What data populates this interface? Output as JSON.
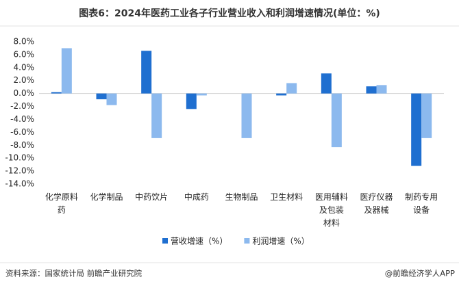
{
  "chart_data": {
    "type": "bar",
    "title": "图表6：2024年医药工业各子行业营业收入和利润增速情况(单位：%)",
    "source": "资料来源：国家统计局 前瞻产业研究院",
    "credit": "@前瞻经济学人APP",
    "categories": [
      "化学原料药",
      "化学制品",
      "中药饮片",
      "中成药",
      "生物制品",
      "卫生材料",
      "医用辅料及包装材料",
      "医疗仪器及器械",
      "制药专用设备"
    ],
    "series": [
      {
        "name": "营收增速（%）",
        "color": "#1f6fd0",
        "values": [
          0.2,
          -0.9,
          6.6,
          -2.4,
          0,
          -0.3,
          3.1,
          1.1,
          -11.2
        ]
      },
      {
        "name": "利润增速（%）",
        "color": "#8cb9ee",
        "values": [
          7.0,
          -1.8,
          -6.9,
          -0.3,
          -6.9,
          1.6,
          -8.3,
          1.3,
          -6.9
        ]
      }
    ],
    "ylim": [
      -14,
      8
    ],
    "yticks": [
      {
        "value": -14,
        "label": "-14.0%"
      },
      {
        "value": -12,
        "label": "-12.0%"
      },
      {
        "value": -10,
        "label": "-10.0%"
      },
      {
        "value": -8,
        "label": "-8.0%"
      },
      {
        "value": -6,
        "label": "-6.0%"
      },
      {
        "value": -4,
        "label": "-4.0%"
      },
      {
        "value": -2,
        "label": "-2.0%"
      },
      {
        "value": 0,
        "label": "0.0%"
      },
      {
        "value": 2,
        "label": "2.0%"
      },
      {
        "value": 4,
        "label": "4.0%"
      },
      {
        "value": 6,
        "label": "6.0%"
      },
      {
        "value": 8,
        "label": "8.0%"
      }
    ],
    "legend": "bottom"
  }
}
